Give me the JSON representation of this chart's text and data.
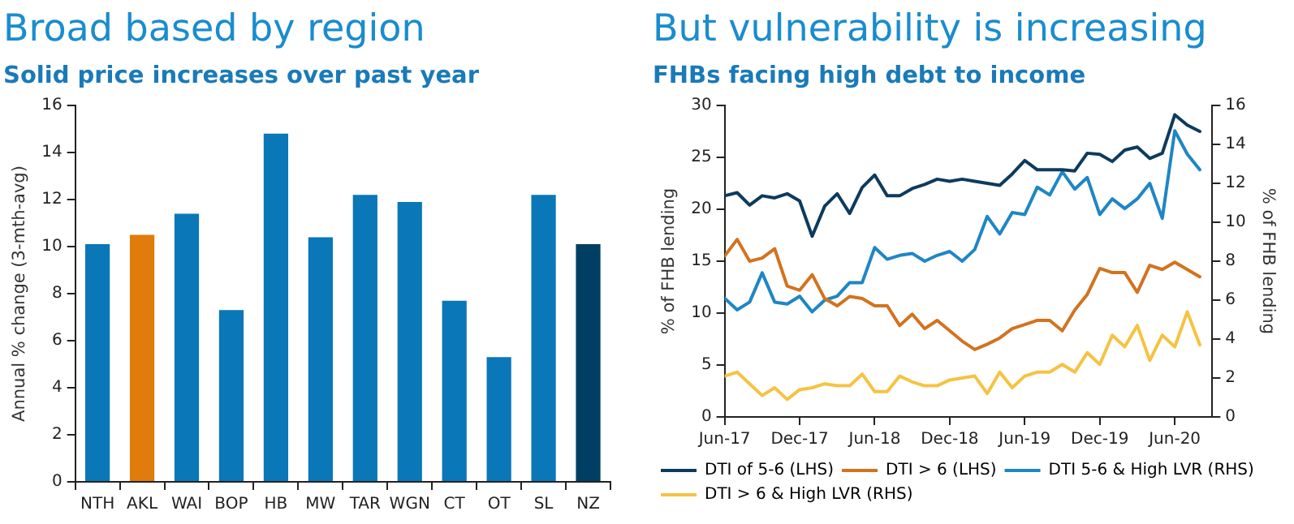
{
  "chart_data": [
    {
      "type": "bar",
      "title": "Broad based by region",
      "subtitle": "Solid price increases over past year",
      "ylabel": "Annual % change (3-mth-avg)",
      "categories": [
        "NTH",
        "AKL",
        "WAI",
        "BOP",
        "HB",
        "MW",
        "TAR",
        "WGN",
        "CT",
        "OT",
        "SL",
        "NZ"
      ],
      "values": [
        10.1,
        10.5,
        11.4,
        7.3,
        14.8,
        10.4,
        12.2,
        11.9,
        7.7,
        5.3,
        12.2,
        10.1
      ],
      "colors": [
        "#0a77b8",
        "#df7c0b",
        "#0a77b8",
        "#0a77b8",
        "#0a77b8",
        "#0a77b8",
        "#0a77b8",
        "#0a77b8",
        "#0a77b8",
        "#0a77b8",
        "#0a77b8",
        "#003f63"
      ],
      "ylim": [
        0,
        16
      ],
      "yticks": [
        0,
        2,
        4,
        6,
        8,
        10,
        12,
        14,
        16
      ],
      "grid": false,
      "legend": false
    },
    {
      "type": "line",
      "title": "But vulnerability is increasing",
      "subtitle": "FHBs facing high debt to income",
      "ylabel": "% of FHB lending",
      "y2label": "% of FHB lending",
      "x": [
        "2017-06",
        "2017-07",
        "2017-08",
        "2017-09",
        "2017-10",
        "2017-11",
        "2017-12",
        "2018-01",
        "2018-02",
        "2018-03",
        "2018-04",
        "2018-05",
        "2018-06",
        "2018-07",
        "2018-08",
        "2018-09",
        "2018-10",
        "2018-11",
        "2018-12",
        "2019-01",
        "2019-02",
        "2019-03",
        "2019-04",
        "2019-05",
        "2019-06",
        "2019-07",
        "2019-08",
        "2019-09",
        "2019-10",
        "2019-11",
        "2019-12",
        "2020-01",
        "2020-02",
        "2020-03",
        "2020-04",
        "2020-05",
        "2020-06",
        "2020-07",
        "2020-08"
      ],
      "xlim": [
        "2017-06",
        "2020-09"
      ],
      "xticks": [
        {
          "value": "2017-06",
          "label": "Jun-17"
        },
        {
          "value": "2017-12",
          "label": "Dec-17"
        },
        {
          "value": "2018-06",
          "label": "Jun-18"
        },
        {
          "value": "2018-12",
          "label": "Dec-18"
        },
        {
          "value": "2019-06",
          "label": "Jun-19"
        },
        {
          "value": "2019-12",
          "label": "Dec-19"
        },
        {
          "value": "2020-06",
          "label": "Jun-20"
        }
      ],
      "ylim": [
        0,
        30
      ],
      "yticks": [
        0,
        5,
        10,
        15,
        20,
        25,
        30
      ],
      "y2lim": [
        0,
        16
      ],
      "y2ticks": [
        0,
        2,
        4,
        6,
        8,
        10,
        12,
        14,
        16
      ],
      "series": [
        {
          "name": "DTI of 5-6 (LHS)",
          "color": "#0d3b5e",
          "values": [
            21.3,
            21.6,
            20.4,
            21.3,
            21.1,
            21.5,
            20.8,
            17.4,
            20.3,
            21.5,
            19.6,
            22.1,
            23.3,
            21.3,
            21.3,
            22.0,
            22.4,
            22.9,
            22.7,
            22.9,
            22.7,
            22.5,
            22.3,
            23.4,
            24.7,
            23.8,
            23.8,
            23.8,
            23.7,
            25.4,
            25.3,
            24.6,
            25.7,
            26.0,
            24.9,
            25.4,
            29.1,
            28.1,
            27.5
          ]
        },
        {
          "name": "DTI > 6 (LHS)",
          "color": "#d2731f",
          "values": [
            15.5,
            17.1,
            15.0,
            15.3,
            16.2,
            12.6,
            12.2,
            13.7,
            11.4,
            10.7,
            11.6,
            11.4,
            10.7,
            10.7,
            8.8,
            9.9,
            8.5,
            9.3,
            8.3,
            7.3,
            6.5,
            7.0,
            7.6,
            8.5,
            8.9,
            9.3,
            9.3,
            8.3,
            10.3,
            11.8,
            14.3,
            13.9,
            13.9,
            12.0,
            14.6,
            14.2,
            14.9,
            14.2,
            13.5
          ]
        },
        {
          "name": "DTI 5-6 & High LVR (RHS)",
          "color": "#1f86c4",
          "axis": "y2",
          "values": [
            6.1,
            5.5,
            5.9,
            7.4,
            5.9,
            5.8,
            6.2,
            5.4,
            6.0,
            6.2,
            6.9,
            6.9,
            8.7,
            8.1,
            8.3,
            8.4,
            8.0,
            8.3,
            8.5,
            8.0,
            8.6,
            10.3,
            9.4,
            10.5,
            10.4,
            11.8,
            11.4,
            12.6,
            11.7,
            12.3,
            10.4,
            11.2,
            10.7,
            11.2,
            12.0,
            10.2,
            14.7,
            13.5,
            12.7
          ]
        },
        {
          "name": "DTI > 6 & High LVR (RHS)",
          "color": "#f5c342",
          "axis": "y2",
          "values": [
            2.1,
            2.3,
            1.7,
            1.1,
            1.5,
            0.9,
            1.4,
            1.5,
            1.7,
            1.6,
            1.6,
            2.2,
            1.3,
            1.3,
            2.1,
            1.8,
            1.6,
            1.6,
            1.9,
            2.0,
            2.1,
            1.2,
            2.3,
            1.5,
            2.1,
            2.3,
            2.3,
            2.7,
            2.3,
            3.3,
            2.7,
            4.2,
            3.6,
            4.7,
            2.9,
            4.2,
            3.6,
            5.4,
            3.7
          ]
        }
      ],
      "grid": false,
      "legend": "bottom",
      "marker": "none",
      "line_style": "solid"
    }
  ]
}
